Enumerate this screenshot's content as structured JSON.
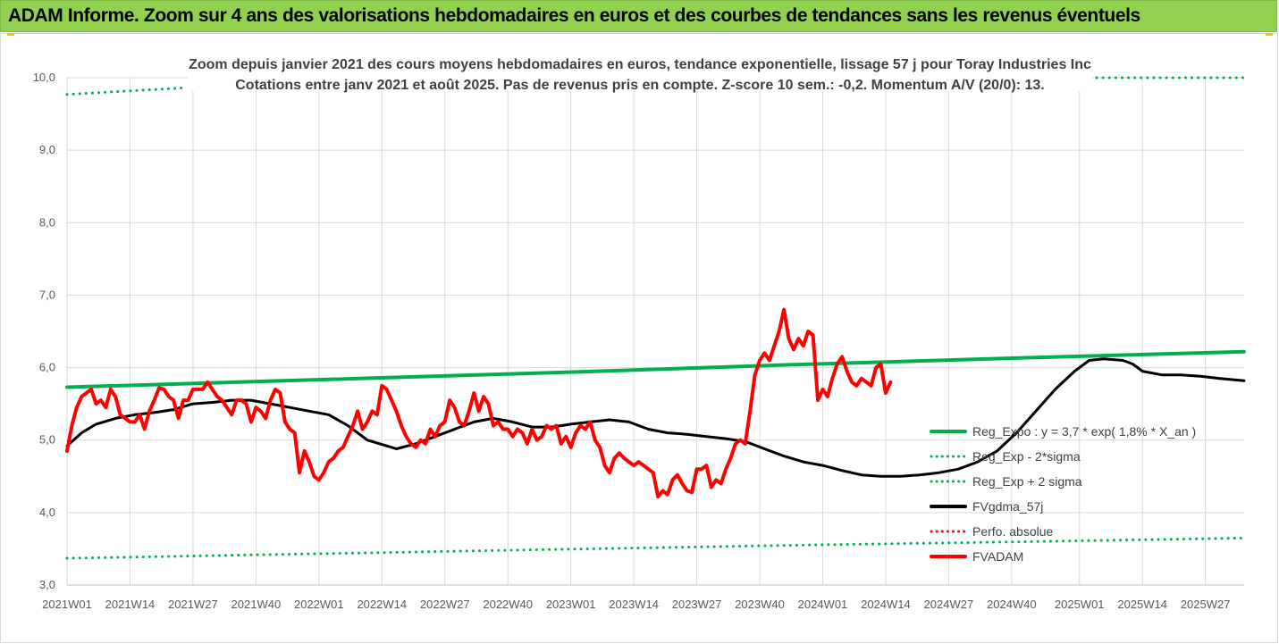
{
  "banner": {
    "title": "ADAM Informe. Zoom sur 4 ans des valorisations hebdomadaires en euros et des courbes de tendances sans les revenus éventuels"
  },
  "chart_data": {
    "type": "line",
    "title_line1": "Zoom depuis janvier 2021 des cours moyens hebdomadaires en euros, tendance exponentielle, lissage 57 j pour Toray Industries Inc",
    "title_line2": "Cotations entre janv 2021 et août 2025.  Pas de revenus pris en compte. Z-score 10 sem.: -0,2. Momentum A/V (20/0): 13.",
    "ylim": [
      3.0,
      10.0
    ],
    "y_ticks": [
      "3,0",
      "4,0",
      "5,0",
      "6,0",
      "7,0",
      "8,0",
      "9,0",
      "10,0"
    ],
    "x_range": [
      0,
      243
    ],
    "x_ticks": [
      {
        "label": "2021W01",
        "x": 0
      },
      {
        "label": "2021W14",
        "x": 13
      },
      {
        "label": "2021W27",
        "x": 26
      },
      {
        "label": "2021W40",
        "x": 39
      },
      {
        "label": "2022W01",
        "x": 52
      },
      {
        "label": "2022W14",
        "x": 65
      },
      {
        "label": "2022W27",
        "x": 78
      },
      {
        "label": "2022W40",
        "x": 91
      },
      {
        "label": "2023W01",
        "x": 104
      },
      {
        "label": "2023W14",
        "x": 117
      },
      {
        "label": "2023W27",
        "x": 130
      },
      {
        "label": "2023W40",
        "x": 143
      },
      {
        "label": "2024W01",
        "x": 156
      },
      {
        "label": "2024W14",
        "x": 169
      },
      {
        "label": "2024W27",
        "x": 182
      },
      {
        "label": "2024W40",
        "x": 195
      },
      {
        "label": "2025W01",
        "x": 209
      },
      {
        "label": "2025W14",
        "x": 222
      },
      {
        "label": "2025W27",
        "x": 235
      }
    ],
    "legend": [
      {
        "label": "Reg_Expo : y = 3,7 * exp( 1,8% *  X_an )",
        "color": "#00B050",
        "style": "solid"
      },
      {
        "label": "Reg_Exp - 2*sigma",
        "color": "#00B050",
        "style": "dotted"
      },
      {
        "label": "Reg_Exp + 2 sigma",
        "color": "#00B050",
        "style": "dotted"
      },
      {
        "label": "FVgdma_57j",
        "color": "#000000",
        "style": "solid"
      },
      {
        "label": "Perfo. absolue",
        "color": "#FF0000",
        "style": "dotted"
      },
      {
        "label": "FVADAM",
        "color": "#FF0000",
        "style": "solid"
      }
    ],
    "series": [
      {
        "name": "Reg_Expo : y = 3,7 * exp( 1,8% *  X_an )",
        "color": "#00B050",
        "style": "solid",
        "width": 4,
        "points": [
          [
            0,
            5.73
          ],
          [
            50,
            5.83
          ],
          [
            100,
            5.93
          ],
          [
            150,
            6.04
          ],
          [
            200,
            6.14
          ],
          [
            243,
            6.22
          ]
        ]
      },
      {
        "name": "Reg_Exp - 2*sigma",
        "color": "#00B050",
        "style": "dotted",
        "width": 3,
        "points": [
          [
            0,
            3.37
          ],
          [
            50,
            3.43
          ],
          [
            100,
            3.49
          ],
          [
            150,
            3.55
          ],
          [
            200,
            3.6
          ],
          [
            243,
            3.65
          ]
        ]
      },
      {
        "name": "Reg_Exp + 2 sigma",
        "color": "#00B050",
        "style": "dotted",
        "width": 3,
        "points": [
          [
            0,
            9.77
          ],
          [
            24,
            9.86
          ]
        ],
        "points2": [
          [
            206,
            10.0
          ],
          [
            243,
            10.0
          ]
        ]
      },
      {
        "name": "FVgdma_57j",
        "color": "#000000",
        "style": "solid",
        "width": 3,
        "points": [
          [
            0,
            4.92
          ],
          [
            3,
            5.1
          ],
          [
            6,
            5.22
          ],
          [
            10,
            5.3
          ],
          [
            14,
            5.35
          ],
          [
            18,
            5.38
          ],
          [
            22,
            5.42
          ],
          [
            26,
            5.5
          ],
          [
            30,
            5.52
          ],
          [
            34,
            5.55
          ],
          [
            38,
            5.55
          ],
          [
            42,
            5.5
          ],
          [
            46,
            5.45
          ],
          [
            50,
            5.4
          ],
          [
            54,
            5.35
          ],
          [
            58,
            5.2
          ],
          [
            62,
            5.0
          ],
          [
            66,
            4.92
          ],
          [
            68,
            4.88
          ],
          [
            72,
            4.95
          ],
          [
            76,
            5.05
          ],
          [
            80,
            5.15
          ],
          [
            84,
            5.25
          ],
          [
            88,
            5.3
          ],
          [
            92,
            5.25
          ],
          [
            96,
            5.18
          ],
          [
            100,
            5.18
          ],
          [
            104,
            5.22
          ],
          [
            108,
            5.25
          ],
          [
            112,
            5.28
          ],
          [
            116,
            5.25
          ],
          [
            120,
            5.15
          ],
          [
            124,
            5.1
          ],
          [
            128,
            5.08
          ],
          [
            132,
            5.05
          ],
          [
            136,
            5.02
          ],
          [
            140,
            4.98
          ],
          [
            144,
            4.88
          ],
          [
            148,
            4.78
          ],
          [
            152,
            4.7
          ],
          [
            156,
            4.65
          ],
          [
            160,
            4.58
          ],
          [
            164,
            4.52
          ],
          [
            168,
            4.5
          ],
          [
            172,
            4.5
          ],
          [
            176,
            4.52
          ],
          [
            180,
            4.55
          ],
          [
            184,
            4.6
          ],
          [
            188,
            4.7
          ],
          [
            192,
            4.85
          ],
          [
            196,
            5.1
          ],
          [
            200,
            5.4
          ],
          [
            204,
            5.7
          ],
          [
            208,
            5.95
          ],
          [
            211,
            6.1
          ],
          [
            214,
            6.12
          ],
          [
            218,
            6.1
          ],
          [
            220,
            6.05
          ],
          [
            222,
            5.95
          ],
          [
            226,
            5.9
          ],
          [
            230,
            5.9
          ],
          [
            234,
            5.88
          ],
          [
            238,
            5.85
          ],
          [
            243,
            5.82
          ]
        ]
      },
      {
        "name": "FVADAM",
        "color": "#FF0000",
        "style": "solid",
        "width": 4,
        "points": [
          [
            0,
            4.85
          ],
          [
            1,
            5.2
          ],
          [
            2,
            5.45
          ],
          [
            3,
            5.6
          ],
          [
            5,
            5.7
          ],
          [
            6,
            5.5
          ],
          [
            7,
            5.55
          ],
          [
            8,
            5.45
          ],
          [
            9,
            5.7
          ],
          [
            10,
            5.6
          ],
          [
            11,
            5.35
          ],
          [
            13,
            5.25
          ],
          [
            14,
            5.25
          ],
          [
            15,
            5.35
          ],
          [
            16,
            5.15
          ],
          [
            17,
            5.4
          ],
          [
            18,
            5.55
          ],
          [
            19,
            5.72
          ],
          [
            20,
            5.7
          ],
          [
            21,
            5.6
          ],
          [
            22,
            5.55
          ],
          [
            23,
            5.3
          ],
          [
            24,
            5.55
          ],
          [
            25,
            5.55
          ],
          [
            26,
            5.7
          ],
          [
            28,
            5.7
          ],
          [
            29,
            5.8
          ],
          [
            30,
            5.7
          ],
          [
            31,
            5.6
          ],
          [
            32,
            5.55
          ],
          [
            33,
            5.45
          ],
          [
            34,
            5.35
          ],
          [
            35,
            5.55
          ],
          [
            36,
            5.55
          ],
          [
            37,
            5.5
          ],
          [
            38,
            5.25
          ],
          [
            39,
            5.45
          ],
          [
            40,
            5.4
          ],
          [
            41,
            5.3
          ],
          [
            42,
            5.55
          ],
          [
            43,
            5.7
          ],
          [
            44,
            5.65
          ],
          [
            45,
            5.25
          ],
          [
            46,
            5.15
          ],
          [
            47,
            5.1
          ],
          [
            48,
            4.55
          ],
          [
            49,
            4.85
          ],
          [
            50,
            4.7
          ],
          [
            51,
            4.5
          ],
          [
            52,
            4.45
          ],
          [
            53,
            4.55
          ],
          [
            54,
            4.7
          ],
          [
            55,
            4.75
          ],
          [
            56,
            4.85
          ],
          [
            57,
            4.9
          ],
          [
            58,
            5.05
          ],
          [
            59,
            5.2
          ],
          [
            60,
            5.4
          ],
          [
            61,
            5.15
          ],
          [
            62,
            5.25
          ],
          [
            63,
            5.4
          ],
          [
            64,
            5.35
          ],
          [
            65,
            5.75
          ],
          [
            66,
            5.7
          ],
          [
            67,
            5.55
          ],
          [
            68,
            5.4
          ],
          [
            69,
            5.2
          ],
          [
            70,
            5.05
          ],
          [
            71,
            4.95
          ],
          [
            72,
            4.9
          ],
          [
            73,
            5.0
          ],
          [
            74,
            4.95
          ],
          [
            75,
            5.15
          ],
          [
            76,
            5.05
          ],
          [
            77,
            5.2
          ],
          [
            78,
            5.25
          ],
          [
            79,
            5.55
          ],
          [
            80,
            5.45
          ],
          [
            81,
            5.25
          ],
          [
            82,
            5.2
          ],
          [
            83,
            5.4
          ],
          [
            84,
            5.65
          ],
          [
            85,
            5.4
          ],
          [
            86,
            5.6
          ],
          [
            87,
            5.5
          ],
          [
            88,
            5.2
          ],
          [
            89,
            5.25
          ],
          [
            90,
            5.15
          ],
          [
            91,
            5.15
          ],
          [
            92,
            5.05
          ],
          [
            93,
            5.15
          ],
          [
            94,
            5.1
          ],
          [
            95,
            4.95
          ],
          [
            96,
            5.15
          ],
          [
            97,
            5.0
          ],
          [
            98,
            5.05
          ],
          [
            99,
            5.2
          ],
          [
            100,
            5.15
          ],
          [
            101,
            5.2
          ],
          [
            102,
            4.95
          ],
          [
            103,
            5.05
          ],
          [
            104,
            4.9
          ],
          [
            105,
            5.1
          ],
          [
            106,
            5.2
          ],
          [
            107,
            5.15
          ],
          [
            108,
            5.25
          ],
          [
            109,
            5.0
          ],
          [
            110,
            4.9
          ],
          [
            111,
            4.65
          ],
          [
            112,
            4.55
          ],
          [
            113,
            4.75
          ],
          [
            114,
            4.82
          ],
          [
            115,
            4.75
          ],
          [
            116,
            4.7
          ],
          [
            117,
            4.65
          ],
          [
            118,
            4.7
          ],
          [
            119,
            4.65
          ],
          [
            120,
            4.6
          ],
          [
            121,
            4.55
          ],
          [
            122,
            4.22
          ],
          [
            123,
            4.3
          ],
          [
            124,
            4.25
          ],
          [
            125,
            4.45
          ],
          [
            126,
            4.52
          ],
          [
            127,
            4.4
          ],
          [
            128,
            4.3
          ],
          [
            129,
            4.28
          ],
          [
            130,
            4.6
          ],
          [
            131,
            4.6
          ],
          [
            132,
            4.65
          ],
          [
            133,
            4.35
          ],
          [
            134,
            4.45
          ],
          [
            135,
            4.4
          ],
          [
            136,
            4.6
          ],
          [
            137,
            4.75
          ],
          [
            138,
            4.95
          ],
          [
            139,
            5.0
          ],
          [
            140,
            4.95
          ],
          [
            141,
            5.4
          ],
          [
            142,
            5.9
          ],
          [
            143,
            6.1
          ],
          [
            144,
            6.2
          ],
          [
            145,
            6.1
          ],
          [
            146,
            6.3
          ],
          [
            147,
            6.5
          ],
          [
            148,
            6.8
          ],
          [
            149,
            6.4
          ],
          [
            150,
            6.25
          ],
          [
            151,
            6.4
          ],
          [
            152,
            6.3
          ],
          [
            153,
            6.5
          ],
          [
            154,
            6.45
          ],
          [
            155,
            5.55
          ],
          [
            156,
            5.7
          ],
          [
            157,
            5.6
          ],
          [
            158,
            5.85
          ],
          [
            159,
            6.05
          ],
          [
            160,
            6.15
          ],
          [
            161,
            5.95
          ],
          [
            162,
            5.8
          ],
          [
            163,
            5.75
          ],
          [
            164,
            5.85
          ],
          [
            165,
            5.8
          ],
          [
            166,
            5.75
          ],
          [
            167,
            6.0
          ],
          [
            168,
            6.05
          ],
          [
            169,
            5.65
          ],
          [
            170,
            5.8
          ]
        ]
      }
    ],
    "grid": true,
    "legend_position": "bottom-right"
  }
}
